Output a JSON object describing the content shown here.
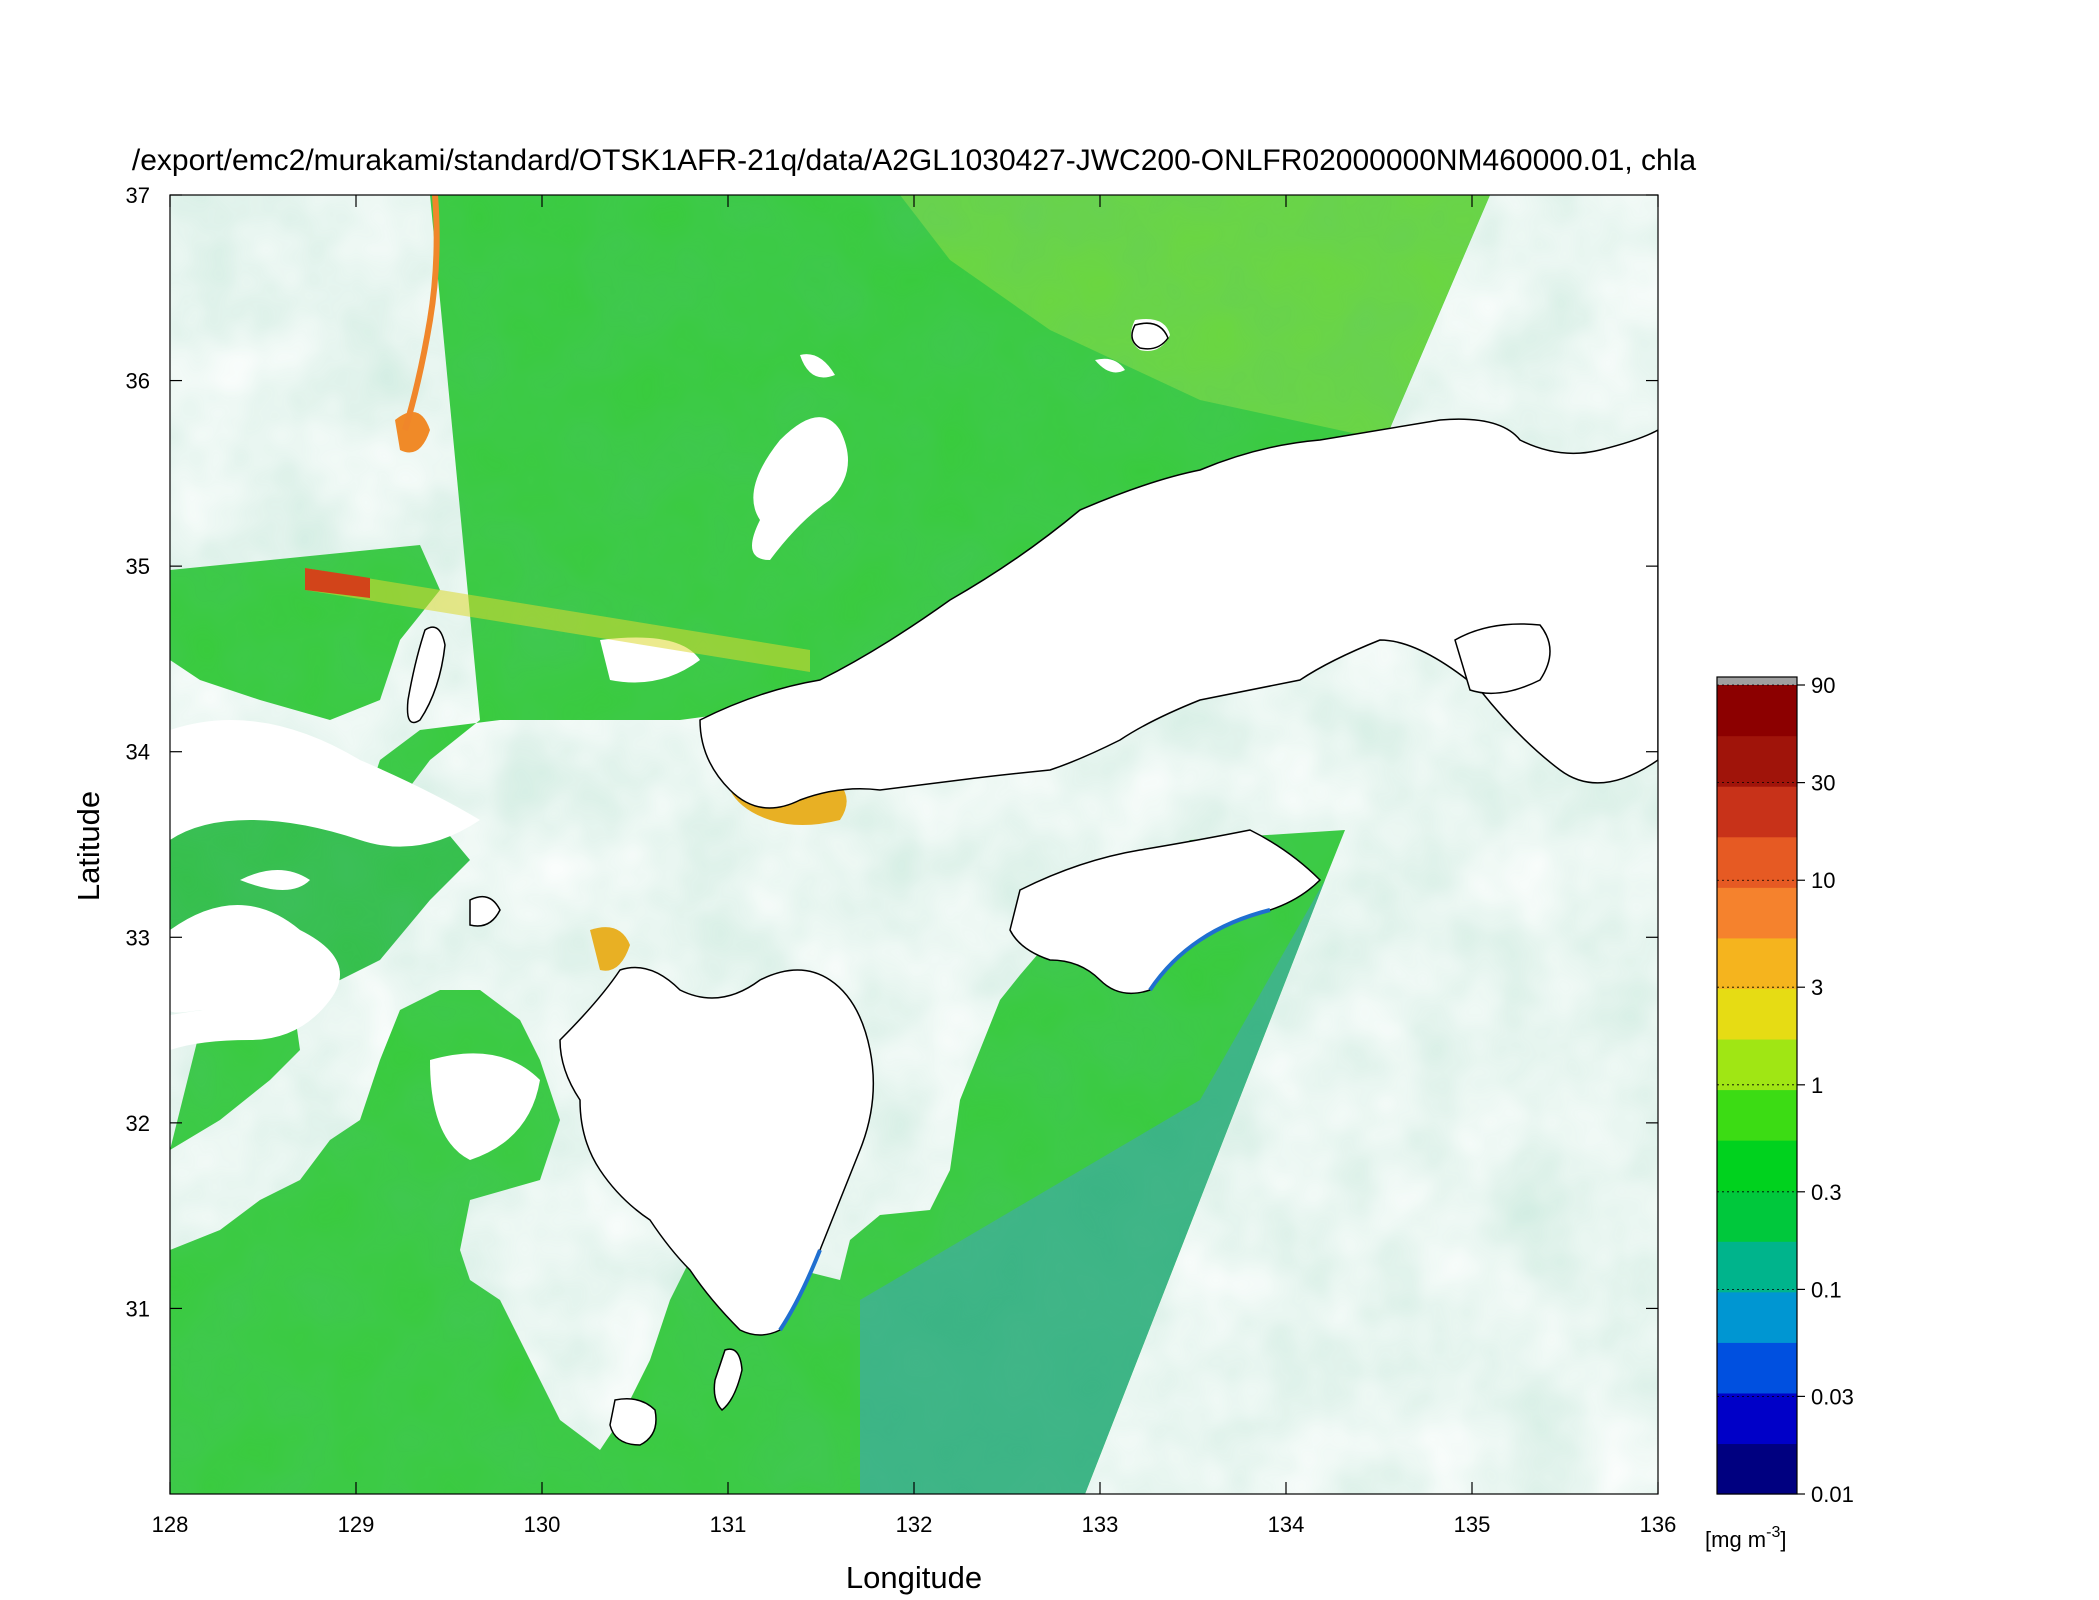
{
  "title": "/export/emc2/murakami/standard/OTSK1AFR-21q/data/A2GL1030427-JWC200-ONLFR02000000NM460000.01, chla",
  "x_axis": {
    "label": "Longitude",
    "ticks": [
      "128",
      "129",
      "130",
      "131",
      "132",
      "133",
      "134",
      "135",
      "136"
    ],
    "range": [
      128,
      136
    ]
  },
  "y_axis": {
    "label": "Latitude",
    "ticks": [
      "31",
      "32",
      "33",
      "34",
      "35",
      "36",
      "37"
    ],
    "range": [
      30,
      37
    ]
  },
  "colorbar": {
    "unit_prefix": "[mg m",
    "unit_exp": "-3",
    "unit_suffix": "]",
    "ticks": [
      "90",
      "30",
      "10",
      "3",
      "1",
      "0.3",
      "0.1",
      "0.03",
      "0.01"
    ],
    "scale": "log",
    "range": [
      0.01,
      90
    ],
    "colors": [
      "#000080",
      "#0000c8",
      "#0050e0",
      "#0096d2",
      "#00b48c",
      "#00c83c",
      "#00d21e",
      "#3cdc14",
      "#a0e614",
      "#e6dc14",
      "#f5b41e",
      "#f5822d",
      "#e65a23",
      "#c83219",
      "#a0140a",
      "#8c0000"
    ],
    "overflow_color": "#a0a0a0"
  },
  "map": {
    "variable": "chla",
    "colors": {
      "sea_low": "#3cb4a0",
      "sea_mid": "#32c846",
      "sea_high": "#7ad83c",
      "bloom": "#f0a028",
      "intense": "#d23c14",
      "land": "#ffffff",
      "coast": "#000000"
    }
  }
}
